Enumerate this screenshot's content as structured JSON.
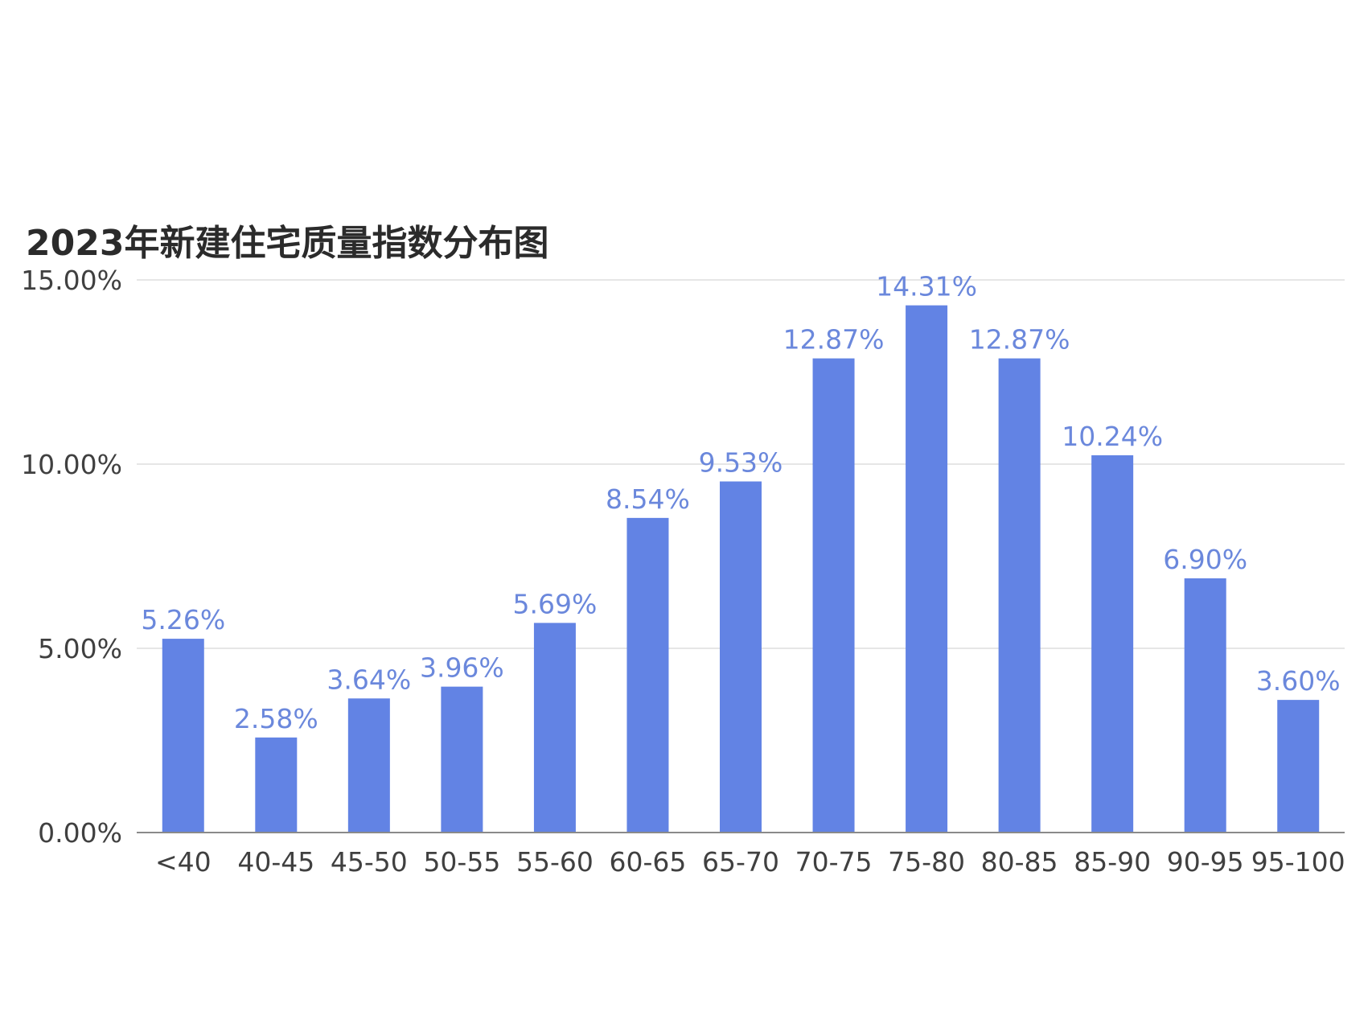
{
  "chart_data": {
    "type": "bar",
    "title": "2023年新建住宅质量指数分布图",
    "xlabel": "",
    "ylabel": "",
    "categories": [
      "<40",
      "40-45",
      "45-50",
      "50-55",
      "55-60",
      "60-65",
      "65-70",
      "70-75",
      "75-80",
      "80-85",
      "85-90",
      "90-95",
      "95-100"
    ],
    "values": [
      5.26,
      2.58,
      3.64,
      3.96,
      5.69,
      8.54,
      9.53,
      12.87,
      14.31,
      12.87,
      10.24,
      6.9,
      3.6
    ],
    "data_labels": [
      "5.26%",
      "2.58%",
      "3.64%",
      "3.96%",
      "5.69%",
      "8.54%",
      "9.53%",
      "12.87%",
      "14.31%",
      "12.87%",
      "10.24%",
      "6.90%",
      "3.60%"
    ],
    "ylim": [
      0,
      15
    ],
    "yticks": [
      0,
      5,
      10,
      15
    ],
    "ytick_labels": [
      "0.00%",
      "5.00%",
      "10.00%",
      "15.00%"
    ],
    "grid": true,
    "legend": "none",
    "colors": {
      "bar": "#6283e4",
      "data_label": "#6b88dc",
      "grid": "#e6e6e6",
      "axis": "#8a8a8a"
    }
  }
}
